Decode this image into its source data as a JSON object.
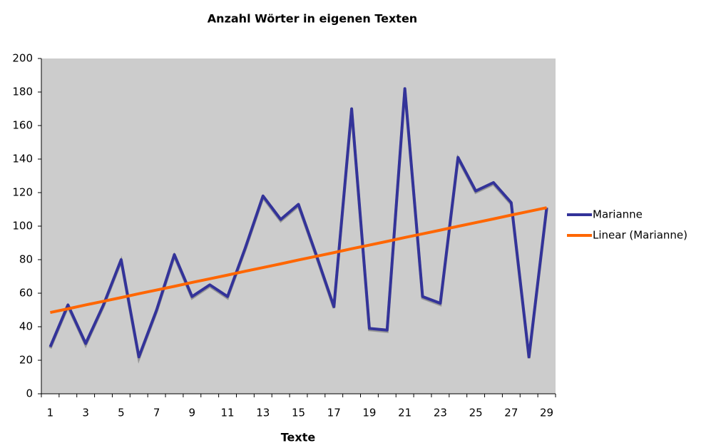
{
  "chart_data": {
    "type": "line",
    "title": "Anzahl Wörter in eigenen Texten",
    "x_label": "Texte",
    "categories": [
      "1",
      null,
      "3",
      null,
      "5",
      null,
      "7",
      null,
      "9",
      null,
      "11",
      null,
      "13",
      null,
      "15",
      null,
      "17",
      null,
      "19",
      null,
      "21",
      null,
      "23",
      null,
      "25",
      null,
      "27",
      null,
      "29"
    ],
    "series": [
      {
        "name": "Marianne",
        "color": "#333399",
        "values": [
          28,
          53,
          30,
          53,
          80,
          22,
          50,
          83,
          58,
          65,
          58,
          87,
          118,
          104,
          113,
          83,
          52,
          170,
          39,
          38,
          182,
          58,
          54,
          141,
          121,
          126,
          114,
          22,
          111
        ]
      },
      {
        "name": "Linear (Marianne)",
        "color": "#ff6600",
        "values": [
          48.5,
          50.7,
          53.0,
          55.2,
          57.4,
          59.7,
          61.9,
          64.1,
          66.4,
          68.6,
          70.8,
          73.1,
          75.3,
          77.5,
          79.8,
          82.0,
          84.2,
          86.5,
          88.7,
          90.9,
          93.2,
          95.4,
          97.6,
          99.9,
          102.1,
          104.3,
          106.6,
          108.8,
          111.0
        ]
      }
    ],
    "ylim": [
      0,
      200
    ],
    "yticks": [
      0,
      20,
      40,
      60,
      80,
      100,
      120,
      140,
      160,
      180,
      200
    ],
    "grid": false
  }
}
